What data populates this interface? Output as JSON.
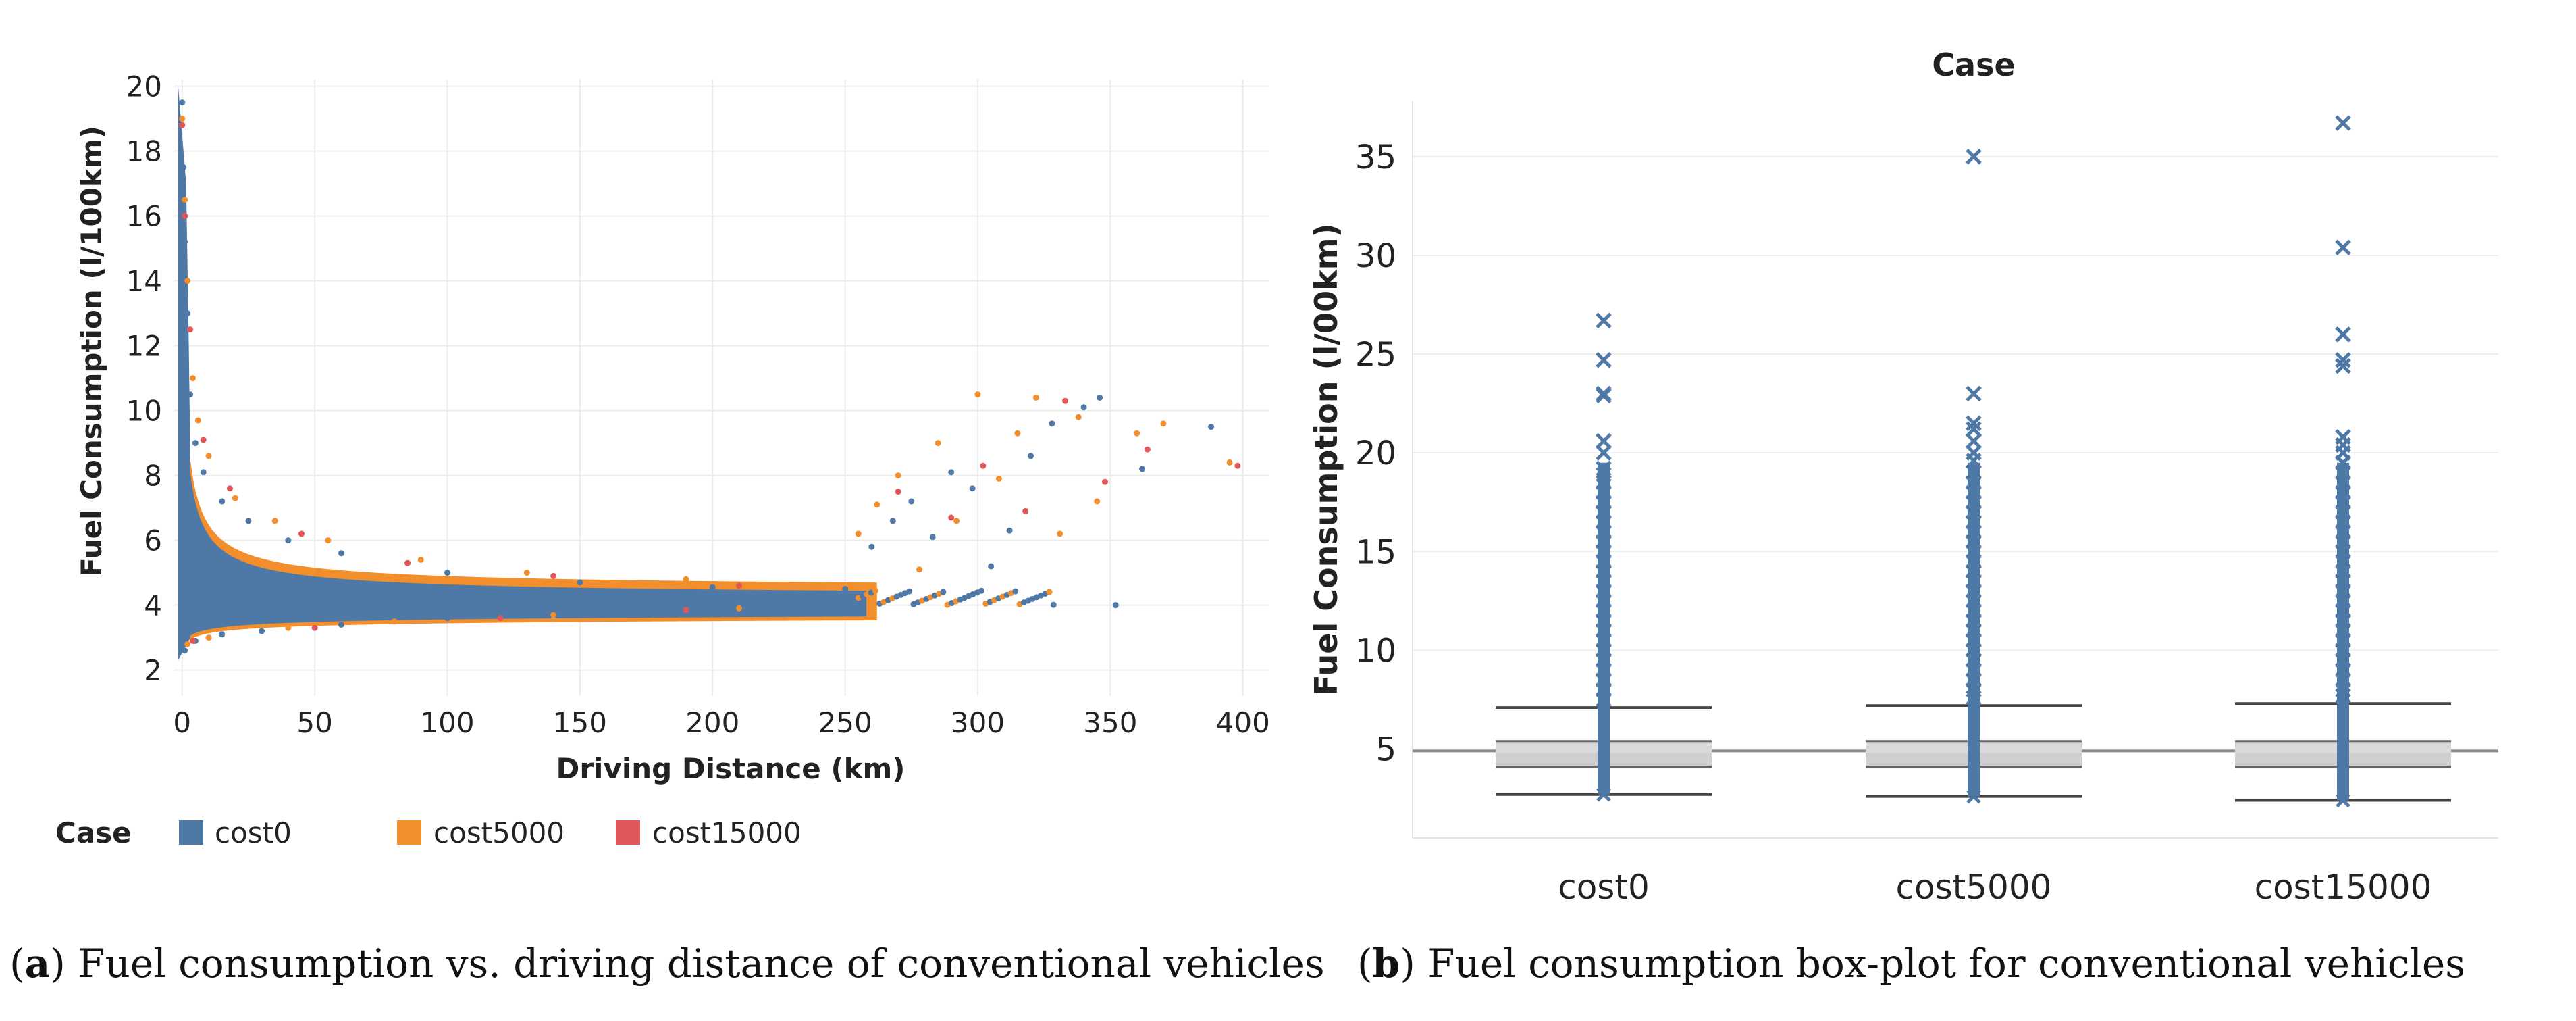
{
  "chart_data": [
    {
      "type": "scatter",
      "title": "",
      "xlabel": "Driving Distance (km)",
      "ylabel": "Fuel Consumption (l/100km)",
      "xlim": [
        -3,
        410
      ],
      "ylim": [
        1.2,
        20.2
      ],
      "x_ticks": [
        0,
        50,
        100,
        150,
        200,
        250,
        300,
        350,
        400
      ],
      "y_ticks": [
        2,
        4,
        6,
        8,
        10,
        12,
        14,
        16,
        18,
        20
      ],
      "legend_title": "Case",
      "legend_position": "bottom-left",
      "series": [
        {
          "name": "cost0",
          "color": "#4e79a7",
          "description_points": [
            [
              0,
              19.5
            ],
            [
              0.5,
              17.5
            ],
            [
              1,
              15.2
            ],
            [
              2,
              13
            ],
            [
              3,
              10.5
            ],
            [
              5,
              9
            ],
            [
              8,
              8.1
            ],
            [
              15,
              7.2
            ],
            [
              25,
              6.6
            ],
            [
              40,
              6
            ],
            [
              60,
              5.6
            ],
            [
              100,
              5
            ],
            [
              150,
              4.7
            ],
            [
              200,
              4.55
            ],
            [
              250,
              4.5
            ],
            [
              1,
              2.6
            ],
            [
              5,
              2.9
            ],
            [
              15,
              3.1
            ],
            [
              30,
              3.2
            ],
            [
              60,
              3.4
            ],
            [
              100,
              3.6
            ],
            [
              150,
              3.8
            ],
            [
              200,
              3.9
            ],
            [
              250,
              4.0
            ],
            [
              260,
              5.8
            ],
            [
              268,
              6.6
            ],
            [
              275,
              7.2
            ],
            [
              283,
              6.1
            ],
            [
              290,
              8.1
            ],
            [
              298,
              7.6
            ],
            [
              305,
              5.2
            ],
            [
              312,
              6.3
            ],
            [
              320,
              8.6
            ],
            [
              328,
              9.6
            ],
            [
              340,
              10.1
            ],
            [
              346,
              10.4
            ],
            [
              352,
              4.0
            ],
            [
              362,
              8.2
            ],
            [
              388,
              9.5
            ]
          ]
        },
        {
          "name": "cost5000",
          "color": "#f28e2b",
          "description_points": [
            [
              0,
              19
            ],
            [
              1,
              16.5
            ],
            [
              2,
              14
            ],
            [
              4,
              11
            ],
            [
              6,
              9.7
            ],
            [
              10,
              8.6
            ],
            [
              20,
              7.3
            ],
            [
              35,
              6.6
            ],
            [
              55,
              6.0
            ],
            [
              90,
              5.4
            ],
            [
              130,
              5.0
            ],
            [
              190,
              4.8
            ],
            [
              240,
              4.6
            ],
            [
              2,
              2.8
            ],
            [
              10,
              3.0
            ],
            [
              40,
              3.3
            ],
            [
              80,
              3.5
            ],
            [
              140,
              3.7
            ],
            [
              210,
              3.9
            ],
            [
              255,
              6.2
            ],
            [
              262,
              7.1
            ],
            [
              270,
              8.0
            ],
            [
              278,
              5.1
            ],
            [
              285,
              9.0
            ],
            [
              292,
              6.6
            ],
            [
              300,
              10.5
            ],
            [
              308,
              7.9
            ],
            [
              315,
              9.3
            ],
            [
              322,
              10.4
            ],
            [
              331,
              6.2
            ],
            [
              338,
              9.8
            ],
            [
              345,
              7.2
            ],
            [
              360,
              9.3
            ],
            [
              370,
              9.6
            ],
            [
              395,
              8.4
            ]
          ]
        },
        {
          "name": "cost15000",
          "color": "#e15759",
          "description_points": [
            [
              0,
              18.8
            ],
            [
              1,
              16
            ],
            [
              3,
              12.5
            ],
            [
              8,
              9.1
            ],
            [
              18,
              7.6
            ],
            [
              45,
              6.2
            ],
            [
              85,
              5.3
            ],
            [
              140,
              4.9
            ],
            [
              210,
              4.6
            ],
            [
              4,
              2.9
            ],
            [
              50,
              3.3
            ],
            [
              120,
              3.6
            ],
            [
              190,
              3.85
            ],
            [
              270,
              7.5
            ],
            [
              290,
              6.7
            ],
            [
              302,
              8.3
            ],
            [
              318,
              6.9
            ],
            [
              333,
              10.3
            ],
            [
              348,
              7.8
            ],
            [
              364,
              8.8
            ],
            [
              398,
              8.3
            ]
          ]
        }
      ]
    },
    {
      "type": "box",
      "title": "Case",
      "xlabel": "",
      "ylabel": "Fuel Consumption (l/00km)",
      "ylim": [
        0.5,
        37.8
      ],
      "y_ticks": [
        5,
        10,
        15,
        20,
        25,
        30,
        35
      ],
      "reference_line": 4.9,
      "categories": [
        "cost0",
        "cost5000",
        "cost15000"
      ],
      "color": "#4e79a7",
      "boxes": [
        {
          "category": "cost0",
          "lower_whisker": 2.7,
          "q1": 4.1,
          "median": 4.8,
          "q3": 5.4,
          "upper_whisker": 7.1,
          "outliers": [
            26.7,
            24.7,
            23.0,
            22.9,
            20.6,
            20.0,
            19.2,
            18.9,
            18.5,
            18.0,
            17.5,
            17.0,
            16.5,
            16.0,
            15.5,
            15.0,
            14.5,
            14.0,
            13.5,
            13.0,
            12.5,
            12.0,
            11.5,
            11.0,
            10.5,
            10.0,
            9.5,
            9.0,
            8.5,
            8.0,
            7.5
          ],
          "min_point": 2.7
        },
        {
          "category": "cost5000",
          "lower_whisker": 2.6,
          "q1": 4.1,
          "median": 4.8,
          "q3": 5.4,
          "upper_whisker": 7.2,
          "outliers": [
            35.0,
            23.0,
            21.5,
            21.2,
            20.6,
            20.0,
            19.6,
            19.0,
            18.5,
            18.0,
            17.5,
            17.0,
            16.5,
            16.0,
            15.5,
            15.0,
            14.5,
            14.0,
            13.5,
            13.0,
            12.5,
            12.0,
            11.5,
            11.0,
            10.5,
            10.0,
            9.5,
            9.0,
            8.5,
            8.0,
            7.6
          ],
          "min_point": 2.6
        },
        {
          "category": "cost15000",
          "lower_whisker": 2.4,
          "q1": 4.1,
          "median": 4.8,
          "q3": 5.4,
          "upper_whisker": 7.3,
          "outliers": [
            36.7,
            30.4,
            26.0,
            24.7,
            24.4,
            20.8,
            20.4,
            20.0,
            19.5,
            19.0,
            18.5,
            18.0,
            17.5,
            17.0,
            16.5,
            16.0,
            15.5,
            15.0,
            14.5,
            14.0,
            13.5,
            13.0,
            12.5,
            12.0,
            11.5,
            11.0,
            10.5,
            10.0,
            9.5,
            9.0,
            8.5,
            8.0,
            7.7
          ],
          "min_point": 2.4
        }
      ]
    }
  ],
  "captions": {
    "a_letter": "a",
    "a_text": " Fuel consumption vs. driving distance of conventional vehicles",
    "b_letter": "b",
    "b_text": " Fuel consumption box-plot for conventional vehicles"
  }
}
